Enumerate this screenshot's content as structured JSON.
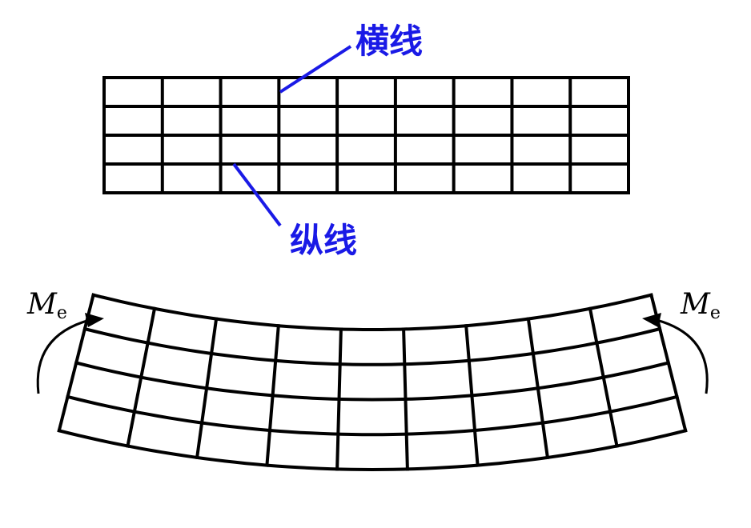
{
  "labels": {
    "transverse_line": "横线",
    "longitudinal_line": "纵线",
    "moment_left": "M",
    "moment_left_sub": "e",
    "moment_right": "M",
    "moment_right_sub": "e"
  },
  "colors": {
    "label": "#1a1ae6",
    "lines": "#000000",
    "background": "#ffffff"
  },
  "grid": {
    "columns": 9,
    "rows": 4
  }
}
